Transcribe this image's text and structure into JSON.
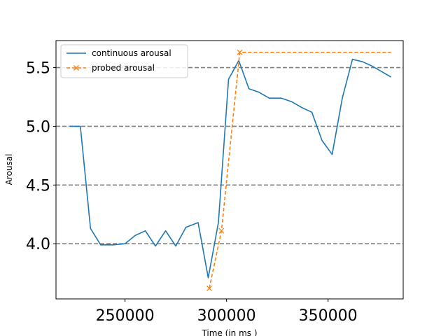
{
  "chart_data": {
    "type": "line",
    "xlabel": "Time (in ms )",
    "ylabel": "Arousal",
    "xlim": [
      216000,
      387000
    ],
    "ylim": [
      3.53,
      5.73
    ],
    "xticks": [
      250000,
      300000,
      350000
    ],
    "yticks": [
      4.0,
      4.5,
      5.0,
      5.5
    ],
    "xtick_labels": [
      "250000",
      "300000",
      "350000"
    ],
    "ytick_labels": [
      "4.0",
      "4.5",
      "5.0",
      "5.5"
    ],
    "hlines": [
      4.0,
      4.5,
      5.0,
      5.5
    ],
    "legend_position": "top-left",
    "series": [
      {
        "name": "continuous arousal",
        "color": "#1f77b4",
        "style": "solid",
        "marker": "none",
        "x": [
          223000,
          228000,
          233000,
          238000,
          244000,
          250000,
          255000,
          260000,
          265000,
          270000,
          275000,
          280000,
          286000,
          291000,
          296000,
          301000,
          306000,
          311000,
          316000,
          321000,
          327000,
          332000,
          337000,
          342000,
          347000,
          352000,
          357000,
          362000,
          367000,
          372000,
          377000,
          381000
        ],
        "y": [
          5.0,
          5.0,
          4.13,
          3.99,
          3.99,
          4.0,
          4.07,
          4.11,
          3.98,
          4.11,
          3.98,
          4.14,
          4.18,
          3.71,
          4.18,
          5.4,
          5.56,
          5.32,
          5.29,
          5.24,
          5.24,
          5.21,
          5.16,
          5.12,
          4.88,
          4.76,
          5.24,
          5.57,
          5.55,
          5.51,
          5.46,
          5.42
        ]
      },
      {
        "name": "probed arousal",
        "color": "#ff7f0e",
        "style": "dashed",
        "marker": "x",
        "x": [
          291500,
          297500,
          306500,
          381000
        ],
        "y": [
          3.62,
          4.11,
          5.63,
          5.63
        ],
        "markers_at": [
          291500,
          297500,
          306500
        ]
      }
    ]
  }
}
